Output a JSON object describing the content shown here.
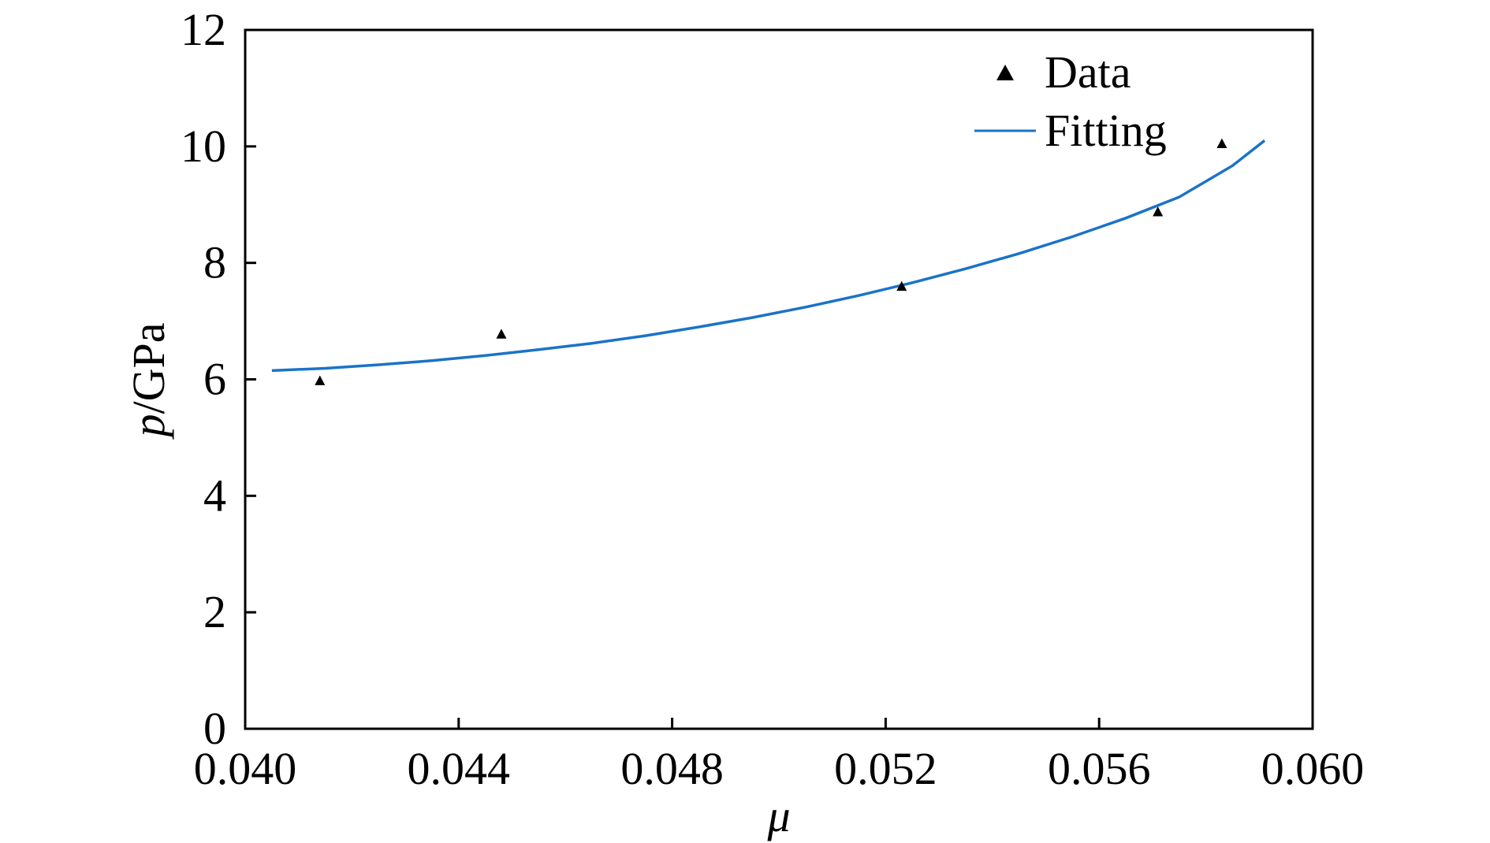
{
  "chart_data": {
    "type": "scatter",
    "title": "",
    "xlabel": "μ",
    "ylabel_var": "p",
    "ylabel_unit": "/GPa",
    "xlim": [
      0.04,
      0.06
    ],
    "ylim": [
      0,
      12
    ],
    "x_ticks": [
      "0.040",
      "0.044",
      "0.048",
      "0.052",
      "0.056",
      "0.060"
    ],
    "y_ticks": [
      "0",
      "2",
      "4",
      "6",
      "8",
      "10",
      "12"
    ],
    "grid": false,
    "legend_position": "top-right",
    "series": [
      {
        "name": "Data",
        "kind": "scatter",
        "marker": "triangle",
        "color": "#000000",
        "x": [
          0.0414,
          0.0448,
          0.0523,
          0.0571,
          0.0583
        ],
        "y": [
          5.98,
          6.78,
          7.6,
          8.88,
          10.05
        ]
      },
      {
        "name": "Fitting",
        "kind": "line",
        "color": "#1a73c8",
        "x": [
          0.0405,
          0.0415,
          0.0425,
          0.0435,
          0.0445,
          0.0455,
          0.0465,
          0.0475,
          0.0485,
          0.0495,
          0.0505,
          0.0515,
          0.0525,
          0.0535,
          0.0545,
          0.0555,
          0.0565,
          0.0575,
          0.0585,
          0.0591
        ],
        "y": [
          6.15,
          6.19,
          6.25,
          6.32,
          6.41,
          6.51,
          6.62,
          6.75,
          6.9,
          7.06,
          7.24,
          7.44,
          7.66,
          7.9,
          8.16,
          8.45,
          8.77,
          9.13,
          9.67,
          10.1
        ]
      }
    ]
  }
}
